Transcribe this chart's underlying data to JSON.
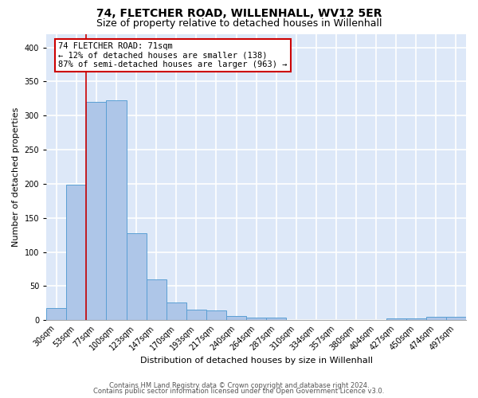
{
  "title": "74, FLETCHER ROAD, WILLENHALL, WV12 5ER",
  "subtitle": "Size of property relative to detached houses in Willenhall",
  "xlabel": "Distribution of detached houses by size in Willenhall",
  "ylabel": "Number of detached properties",
  "bar_labels": [
    "30sqm",
    "53sqm",
    "77sqm",
    "100sqm",
    "123sqm",
    "147sqm",
    "170sqm",
    "193sqm",
    "217sqm",
    "240sqm",
    "264sqm",
    "287sqm",
    "310sqm",
    "334sqm",
    "357sqm",
    "380sqm",
    "404sqm",
    "427sqm",
    "450sqm",
    "474sqm",
    "497sqm"
  ],
  "bar_values": [
    18,
    199,
    320,
    323,
    128,
    60,
    26,
    15,
    14,
    6,
    4,
    4,
    0,
    0,
    0,
    0,
    0,
    3,
    2,
    5,
    5
  ],
  "bar_color": "#aec6e8",
  "bar_edgecolor": "#5a9fd4",
  "background_color": "#dde8f8",
  "grid_color": "#ffffff",
  "red_line_x": 1.5,
  "annotation_text": "74 FLETCHER ROAD: 71sqm\n← 12% of detached houses are smaller (138)\n87% of semi-detached houses are larger (963) →",
  "annotation_box_color": "#ffffff",
  "annotation_box_edgecolor": "#cc0000",
  "ylim": [
    0,
    420
  ],
  "title_fontsize": 10,
  "subtitle_fontsize": 9,
  "axis_label_fontsize": 8,
  "tick_fontsize": 7,
  "annotation_fontsize": 7.5,
  "footer_line1": "Contains HM Land Registry data © Crown copyright and database right 2024.",
  "footer_line2": "Contains public sector information licensed under the Open Government Licence v3.0.",
  "footer_fontsize": 6
}
